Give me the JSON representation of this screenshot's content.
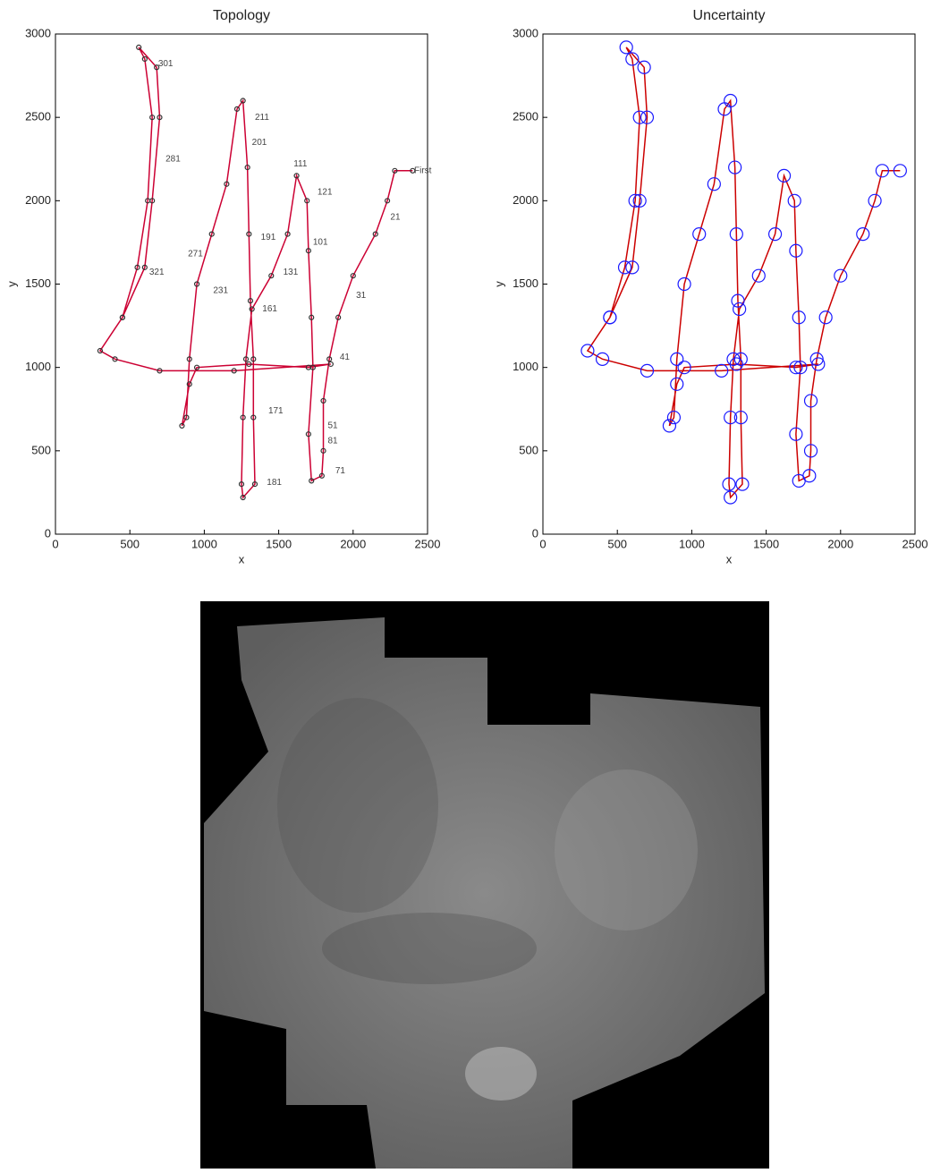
{
  "chart_data": [
    {
      "type": "line",
      "title": "Topology",
      "xlabel": "x",
      "ylabel": "y",
      "xlim": [
        0,
        2500
      ],
      "ylim": [
        0,
        3000
      ],
      "xticks": [
        0,
        500,
        1000,
        1500,
        2000,
        2500
      ],
      "yticks": [
        0,
        500,
        1000,
        1500,
        2000,
        2500,
        3000
      ],
      "series": [
        {
          "color": "#cc0033",
          "marker_color": "#333333",
          "marker_size": 2.5,
          "x": [
            2400,
            2280,
            2230,
            2150,
            2000,
            1900,
            1840,
            1800,
            1800,
            1790,
            1720,
            1700,
            1730,
            1720,
            1700,
            1690,
            1620,
            1560,
            1450,
            1320,
            1280,
            1260,
            1250,
            1260,
            1340,
            1330,
            1330,
            1310,
            1300,
            1290,
            1260,
            1220,
            1150,
            1050,
            950,
            900,
            880,
            850,
            900,
            950,
            1300,
            1700,
            1850,
            1200,
            700,
            400,
            300,
            450,
            550,
            620,
            650,
            600,
            560,
            680,
            700,
            650,
            600,
            450
          ],
          "y": [
            2180,
            2180,
            2000,
            1800,
            1550,
            1300,
            1050,
            800,
            500,
            350,
            320,
            600,
            1000,
            1300,
            1700,
            2000,
            2150,
            1800,
            1550,
            1350,
            1050,
            700,
            300,
            220,
            300,
            700,
            1050,
            1400,
            1800,
            2200,
            2600,
            2550,
            2100,
            1800,
            1500,
            1050,
            700,
            650,
            900,
            1000,
            1020,
            1000,
            1020,
            980,
            980,
            1050,
            1100,
            1300,
            1600,
            2000,
            2500,
            2850,
            2920,
            2800,
            2500,
            2000,
            1600,
            1300
          ]
        }
      ],
      "annotations": [
        {
          "text": "301",
          "x": 690,
          "y": 2820
        },
        {
          "text": "281",
          "x": 740,
          "y": 2250
        },
        {
          "text": "211",
          "x": 1340,
          "y": 2500
        },
        {
          "text": "201",
          "x": 1320,
          "y": 2350
        },
        {
          "text": "111",
          "x": 1600,
          "y": 2220
        },
        {
          "text": "121",
          "x": 1760,
          "y": 2050
        },
        {
          "text": "191",
          "x": 1380,
          "y": 1780
        },
        {
          "text": "101",
          "x": 1730,
          "y": 1750
        },
        {
          "text": "271",
          "x": 890,
          "y": 1680
        },
        {
          "text": "131",
          "x": 1530,
          "y": 1570
        },
        {
          "text": "321",
          "x": 630,
          "y": 1570
        },
        {
          "text": "231",
          "x": 1060,
          "y": 1460
        },
        {
          "text": "161",
          "x": 1390,
          "y": 1350
        },
        {
          "text": "31",
          "x": 2020,
          "y": 1430
        },
        {
          "text": "21",
          "x": 2250,
          "y": 1900
        },
        {
          "text": "First",
          "x": 2410,
          "y": 2180
        },
        {
          "text": "41",
          "x": 1910,
          "y": 1060
        },
        {
          "text": "171",
          "x": 1430,
          "y": 740
        },
        {
          "text": "51",
          "x": 1830,
          "y": 650
        },
        {
          "text": "81",
          "x": 1830,
          "y": 560
        },
        {
          "text": "71",
          "x": 1880,
          "y": 380
        },
        {
          "text": "181",
          "x": 1420,
          "y": 310
        }
      ]
    },
    {
      "type": "line",
      "title": "Uncertainty",
      "xlabel": "x",
      "ylabel": "y",
      "xlim": [
        0,
        2500
      ],
      "ylim": [
        0,
        3000
      ],
      "xticks": [
        0,
        500,
        1000,
        1500,
        2000,
        2500
      ],
      "yticks": [
        0,
        500,
        1000,
        1500,
        2000,
        2500,
        3000
      ],
      "series": [
        {
          "color": "#cc0000",
          "marker_color": "#1a1aff",
          "marker_size": 7,
          "x": [
            2400,
            2280,
            2230,
            2150,
            2000,
            1900,
            1840,
            1800,
            1800,
            1790,
            1720,
            1700,
            1730,
            1720,
            1700,
            1690,
            1620,
            1560,
            1450,
            1320,
            1280,
            1260,
            1250,
            1260,
            1340,
            1330,
            1330,
            1310,
            1300,
            1290,
            1260,
            1220,
            1150,
            1050,
            950,
            900,
            880,
            850,
            900,
            950,
            1300,
            1700,
            1850,
            1200,
            700,
            400,
            300,
            450,
            550,
            620,
            650,
            600,
            560,
            680,
            700,
            650,
            600,
            450
          ],
          "y": [
            2180,
            2180,
            2000,
            1800,
            1550,
            1300,
            1050,
            800,
            500,
            350,
            320,
            600,
            1000,
            1300,
            1700,
            2000,
            2150,
            1800,
            1550,
            1350,
            1050,
            700,
            300,
            220,
            300,
            700,
            1050,
            1400,
            1800,
            2200,
            2600,
            2550,
            2100,
            1800,
            1500,
            1050,
            700,
            650,
            900,
            1000,
            1020,
            1000,
            1020,
            980,
            980,
            1050,
            1100,
            1300,
            1600,
            2000,
            2500,
            2850,
            2920,
            2800,
            2500,
            2000,
            1600,
            1300
          ]
        }
      ],
      "annotations": []
    }
  ]
}
